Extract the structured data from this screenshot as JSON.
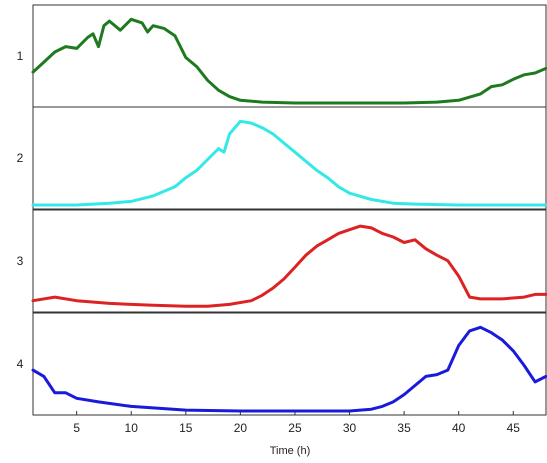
{
  "chart_data": {
    "type": "line",
    "layout": "stacked-panels",
    "xlabel": "Time (h)",
    "xlim": [
      1,
      48
    ],
    "xticks": [
      5,
      10,
      15,
      20,
      25,
      30,
      35,
      40,
      45
    ],
    "ylim": [
      0,
      1
    ],
    "grid": false,
    "legend": "none",
    "panels": [
      {
        "label": "1",
        "color": "#1e7a1e",
        "x": [
          1,
          2,
          3,
          4,
          5,
          6,
          6.5,
          7,
          7.5,
          8,
          9,
          10,
          11,
          11.5,
          12,
          13,
          14,
          15,
          16,
          17,
          18,
          19,
          20,
          22,
          25,
          30,
          35,
          38,
          40,
          42,
          43,
          44,
          45,
          46,
          47,
          48
        ],
        "y": [
          0.34,
          0.45,
          0.56,
          0.62,
          0.6,
          0.72,
          0.76,
          0.62,
          0.85,
          0.9,
          0.8,
          0.92,
          0.88,
          0.78,
          0.85,
          0.82,
          0.74,
          0.5,
          0.4,
          0.25,
          0.14,
          0.07,
          0.03,
          0.01,
          0.0,
          0.0,
          0.0,
          0.01,
          0.03,
          0.1,
          0.18,
          0.2,
          0.26,
          0.31,
          0.33,
          0.38
        ]
      },
      {
        "label": "2",
        "color": "#35e8e8",
        "x": [
          1,
          5,
          8,
          10,
          12,
          14,
          15,
          16,
          17,
          18,
          18.5,
          19,
          19.5,
          20,
          21,
          22,
          23,
          24,
          25,
          26,
          27,
          28,
          29,
          30,
          32,
          34,
          36,
          40,
          48
        ],
        "y": [
          0.0,
          0.0,
          0.02,
          0.04,
          0.1,
          0.2,
          0.3,
          0.38,
          0.5,
          0.62,
          0.58,
          0.78,
          0.85,
          0.92,
          0.9,
          0.85,
          0.78,
          0.68,
          0.58,
          0.48,
          0.38,
          0.3,
          0.2,
          0.13,
          0.06,
          0.02,
          0.01,
          0.0,
          0.0
        ]
      },
      {
        "label": "3",
        "color": "#dd2222",
        "x": [
          1,
          3,
          5,
          8,
          10,
          12,
          15,
          17,
          19,
          21,
          22,
          23,
          24,
          25,
          26,
          27,
          28,
          29,
          30,
          31,
          32,
          33,
          34,
          35,
          36,
          37,
          38,
          39,
          40,
          41,
          42,
          44,
          46,
          47,
          48
        ],
        "y": [
          0.08,
          0.12,
          0.08,
          0.05,
          0.04,
          0.03,
          0.02,
          0.02,
          0.04,
          0.08,
          0.14,
          0.22,
          0.32,
          0.45,
          0.58,
          0.68,
          0.75,
          0.82,
          0.86,
          0.9,
          0.88,
          0.82,
          0.78,
          0.72,
          0.75,
          0.65,
          0.58,
          0.52,
          0.35,
          0.12,
          0.1,
          0.1,
          0.12,
          0.15,
          0.15
        ]
      },
      {
        "label": "4",
        "color": "#1a1adb",
        "x": [
          1,
          2,
          3,
          4,
          5,
          7,
          10,
          15,
          20,
          25,
          30,
          32,
          33,
          34,
          35,
          36,
          37,
          38,
          39,
          40,
          41,
          42,
          43,
          44,
          45,
          46,
          47,
          48
        ],
        "y": [
          0.45,
          0.38,
          0.2,
          0.2,
          0.14,
          0.1,
          0.05,
          0.01,
          0.0,
          0.0,
          0.0,
          0.02,
          0.05,
          0.1,
          0.18,
          0.28,
          0.38,
          0.4,
          0.45,
          0.72,
          0.88,
          0.92,
          0.86,
          0.78,
          0.66,
          0.5,
          0.32,
          0.38
        ]
      }
    ]
  }
}
